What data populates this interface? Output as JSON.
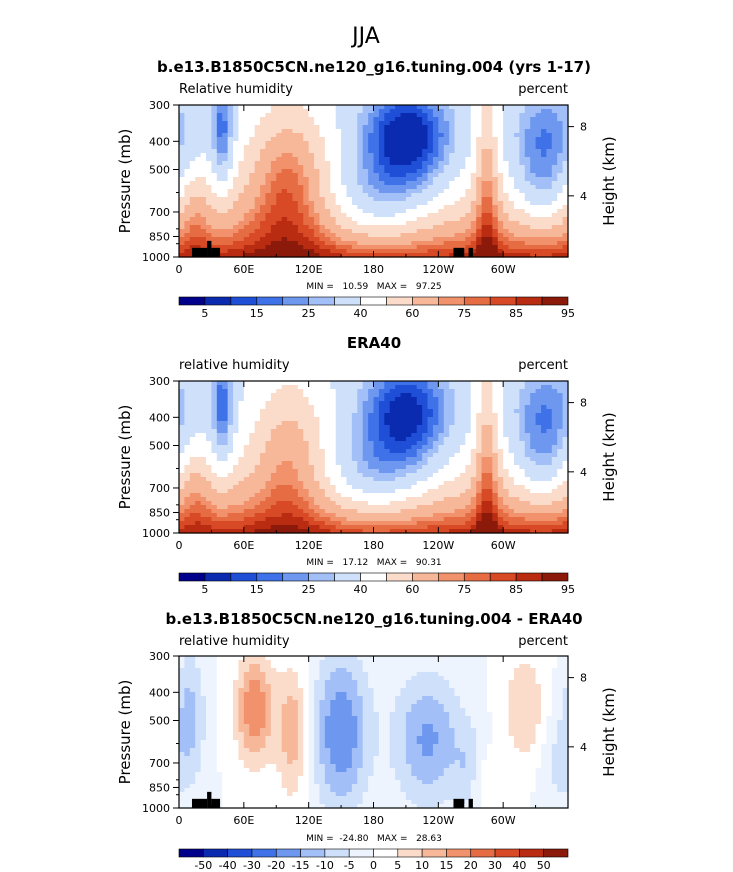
{
  "figure_title": "JJA",
  "colors": {
    "rh": [
      "#00008b",
      "#0a2bb0",
      "#1f4fd6",
      "#3f72e8",
      "#6e98f0",
      "#a2c0f7",
      "#cfe0fb",
      "#ffffff",
      "#fbdccb",
      "#f7b89a",
      "#f1926d",
      "#e66c44",
      "#d84a26",
      "#b92c12",
      "#8b1a0a"
    ],
    "diff": [
      "#00008b",
      "#0a2bb0",
      "#1f4fd6",
      "#3f72e8",
      "#6e98f0",
      "#a2c0f7",
      "#cfe0fb",
      "#eef4fd",
      "#ffffff",
      "#fbdccb",
      "#f7b89a",
      "#f1926d",
      "#e66c44",
      "#d84a26",
      "#b92c12",
      "#8b1a0a"
    ],
    "terrain": "#000000"
  },
  "chart_data": [
    {
      "type": "heatmap",
      "title": "b.e13.B1850C5CN.ne120_g16.tuning.004 (yrs 1-17)",
      "left_label": "Relative humidity",
      "right_label": "percent",
      "ylabel": "Pressure (mb)",
      "ylabel_right": "Height (km)",
      "x_ticks": [
        "0",
        "60E",
        "120E",
        "180",
        "120W",
        "60W"
      ],
      "x_tick_values": [
        0,
        60,
        120,
        180,
        240,
        300
      ],
      "xlim": [
        0,
        360
      ],
      "y_ticks": [
        "300",
        "400",
        "500",
        "700",
        "850",
        "1000"
      ],
      "y_tick_values": [
        300,
        400,
        500,
        700,
        850,
        1000
      ],
      "ylim": [
        1000,
        300
      ],
      "y_right_ticks": [
        "8",
        "4"
      ],
      "y_right_values": [
        356,
        616
      ],
      "stats": "MIN =   10.59   MAX =   97.25",
      "colorbar_levels": [
        5,
        10,
        15,
        20,
        25,
        30,
        40,
        50,
        60,
        70,
        75,
        80,
        85,
        90,
        95
      ],
      "colorbar_labels": [
        "5",
        "15",
        "25",
        "40",
        "60",
        "75",
        "85",
        "95"
      ],
      "colorbar_label_index": [
        0,
        2,
        4,
        6,
        8,
        10,
        12,
        14
      ],
      "terrain": true,
      "mode": "model"
    },
    {
      "type": "heatmap",
      "title": "ERA40",
      "left_label": "relative humidity",
      "right_label": "percent",
      "ylabel": "Pressure (mb)",
      "ylabel_right": "Height (km)",
      "x_ticks": [
        "0",
        "60E",
        "120E",
        "180",
        "120W",
        "60W"
      ],
      "x_tick_values": [
        0,
        60,
        120,
        180,
        240,
        300
      ],
      "xlim": [
        0,
        360
      ],
      "y_ticks": [
        "300",
        "400",
        "500",
        "700",
        "850",
        "1000"
      ],
      "y_tick_values": [
        300,
        400,
        500,
        700,
        850,
        1000
      ],
      "ylim": [
        1000,
        300
      ],
      "y_right_ticks": [
        "8",
        "4"
      ],
      "y_right_values": [
        356,
        616
      ],
      "stats": "MIN =   17.12   MAX =   90.31",
      "colorbar_levels": [
        5,
        10,
        15,
        20,
        25,
        30,
        40,
        50,
        60,
        70,
        75,
        80,
        85,
        90,
        95
      ],
      "colorbar_labels": [
        "5",
        "15",
        "25",
        "40",
        "60",
        "75",
        "85",
        "95"
      ],
      "colorbar_label_index": [
        0,
        2,
        4,
        6,
        8,
        10,
        12,
        14
      ],
      "terrain": false,
      "mode": "obs"
    },
    {
      "type": "heatmap",
      "title": "b.e13.B1850C5CN.ne120_g16.tuning.004 - ERA40",
      "left_label": "relative humidity",
      "right_label": "percent",
      "ylabel": "Pressure (mb)",
      "ylabel_right": "Height (km)",
      "x_ticks": [
        "0",
        "60E",
        "120E",
        "180",
        "120W",
        "60W"
      ],
      "x_tick_values": [
        0,
        60,
        120,
        180,
        240,
        300
      ],
      "xlim": [
        0,
        360
      ],
      "y_ticks": [
        "300",
        "400",
        "500",
        "700",
        "850",
        "1000"
      ],
      "y_tick_values": [
        300,
        400,
        500,
        700,
        850,
        1000
      ],
      "ylim": [
        1000,
        300
      ],
      "y_right_ticks": [
        "8",
        "4"
      ],
      "y_right_values": [
        356,
        616
      ],
      "stats": "MIN =  -24.80   MAX =   28.63",
      "colorbar_levels": [
        -50,
        -40,
        -30,
        -20,
        -15,
        -10,
        -5,
        0,
        5,
        10,
        15,
        20,
        30,
        40,
        50
      ],
      "colorbar_labels": [
        "-50",
        "-40",
        "-30",
        "-20",
        "-15",
        "-10",
        "-5",
        "0",
        "5",
        "10",
        "15",
        "20",
        "30",
        "40",
        "50"
      ],
      "colorbar_label_index": [
        0,
        1,
        2,
        3,
        4,
        5,
        6,
        7,
        8,
        9,
        10,
        11,
        12,
        13,
        14
      ],
      "terrain": true,
      "mode": "diff"
    }
  ]
}
